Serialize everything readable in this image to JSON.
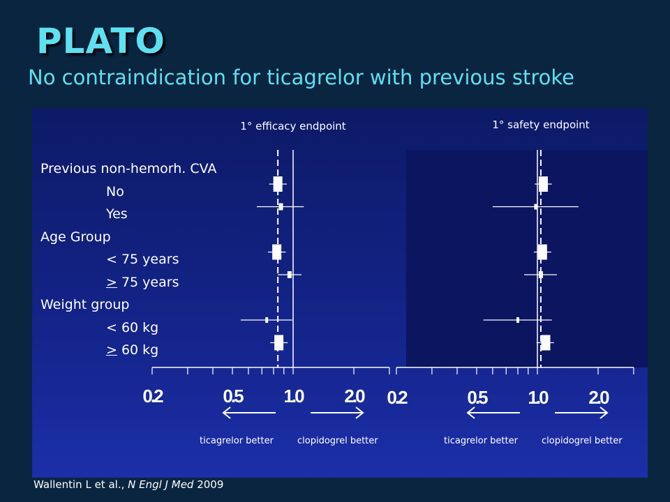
{
  "header": {
    "title": "PLATO",
    "subtitle": "No contraindication for ticagrelor with previous stroke"
  },
  "rows": [
    {
      "label": "Previous non-hemorh. CVA",
      "indent": false,
      "prefix": "",
      "rest": ""
    },
    {
      "label": "No",
      "indent": true,
      "prefix": "",
      "rest": ""
    },
    {
      "label": "Yes",
      "indent": true,
      "prefix": "",
      "rest": ""
    },
    {
      "label": "Age Group",
      "indent": false,
      "prefix": "",
      "rest": ""
    },
    {
      "label": "< 75 years",
      "indent": true,
      "prefix": "",
      "rest": ""
    },
    {
      "label": "> 75 years",
      "indent": true,
      "prefix": ">",
      "rest": " 75 years"
    },
    {
      "label": "Weight group",
      "indent": false,
      "prefix": "",
      "rest": ""
    },
    {
      "label": "< 60 kg",
      "indent": true,
      "prefix": "",
      "rest": ""
    },
    {
      "label": "> 60 kg",
      "indent": true,
      "prefix": ">",
      "rest": " 60 kg"
    }
  ],
  "citation": {
    "authors": "Wallentin L et al., ",
    "journal": "N Engl J Med",
    "year": " 2009"
  },
  "chart_data": [
    {
      "type": "forest",
      "title": "1° efficacy endpoint",
      "xscale": "log",
      "xlim": [
        0.2,
        3.0
      ],
      "tick_labels": [
        "0.2",
        "0.5",
        "1.0",
        "2.0"
      ],
      "tick_values": [
        0.2,
        0.5,
        1.0,
        2.0
      ],
      "reference_line": 1.0,
      "overall_estimate_line": 0.84,
      "direction_labels": [
        "ticagrelor better",
        "clopidogrel better"
      ],
      "points": [
        {
          "row": 1,
          "estimate": 0.84,
          "ci": [
            0.76,
            0.93
          ],
          "weight": "large"
        },
        {
          "row": 2,
          "estimate": 0.87,
          "ci": [
            0.66,
            1.13
          ],
          "weight": "small"
        },
        {
          "row": 4,
          "estimate": 0.83,
          "ci": [
            0.75,
            0.92
          ],
          "weight": "large"
        },
        {
          "row": 5,
          "estimate": 0.96,
          "ci": [
            0.84,
            1.1
          ],
          "weight": "small"
        },
        {
          "row": 7,
          "estimate": 0.74,
          "ci": [
            0.55,
            0.99
          ],
          "weight": "tiny"
        },
        {
          "row": 8,
          "estimate": 0.85,
          "ci": [
            0.77,
            0.94
          ],
          "weight": "large"
        }
      ]
    },
    {
      "type": "forest",
      "title": "1° safety endpoint",
      "xscale": "log",
      "xlim": [
        0.2,
        3.0
      ],
      "tick_labels": [
        "0.2",
        "0.5",
        "1.0",
        "2.0"
      ],
      "tick_values": [
        0.2,
        0.5,
        1.0,
        2.0
      ],
      "reference_line": 1.0,
      "overall_estimate_line": 1.04,
      "direction_labels": [
        "ticagrelor better",
        "clopidogrel better"
      ],
      "points": [
        {
          "row": 1,
          "estimate": 1.07,
          "ci": [
            0.97,
            1.18
          ],
          "weight": "large"
        },
        {
          "row": 2,
          "estimate": 0.98,
          "ci": [
            0.6,
            1.6
          ],
          "weight": "tiny"
        },
        {
          "row": 4,
          "estimate": 1.06,
          "ci": [
            0.96,
            1.17
          ],
          "weight": "large"
        },
        {
          "row": 5,
          "estimate": 1.04,
          "ci": [
            0.86,
            1.25
          ],
          "weight": "small"
        },
        {
          "row": 7,
          "estimate": 0.8,
          "ci": [
            0.54,
            1.18
          ],
          "weight": "tiny"
        },
        {
          "row": 8,
          "estimate": 1.1,
          "ci": [
            0.99,
            1.21
          ],
          "weight": "large"
        }
      ]
    }
  ]
}
